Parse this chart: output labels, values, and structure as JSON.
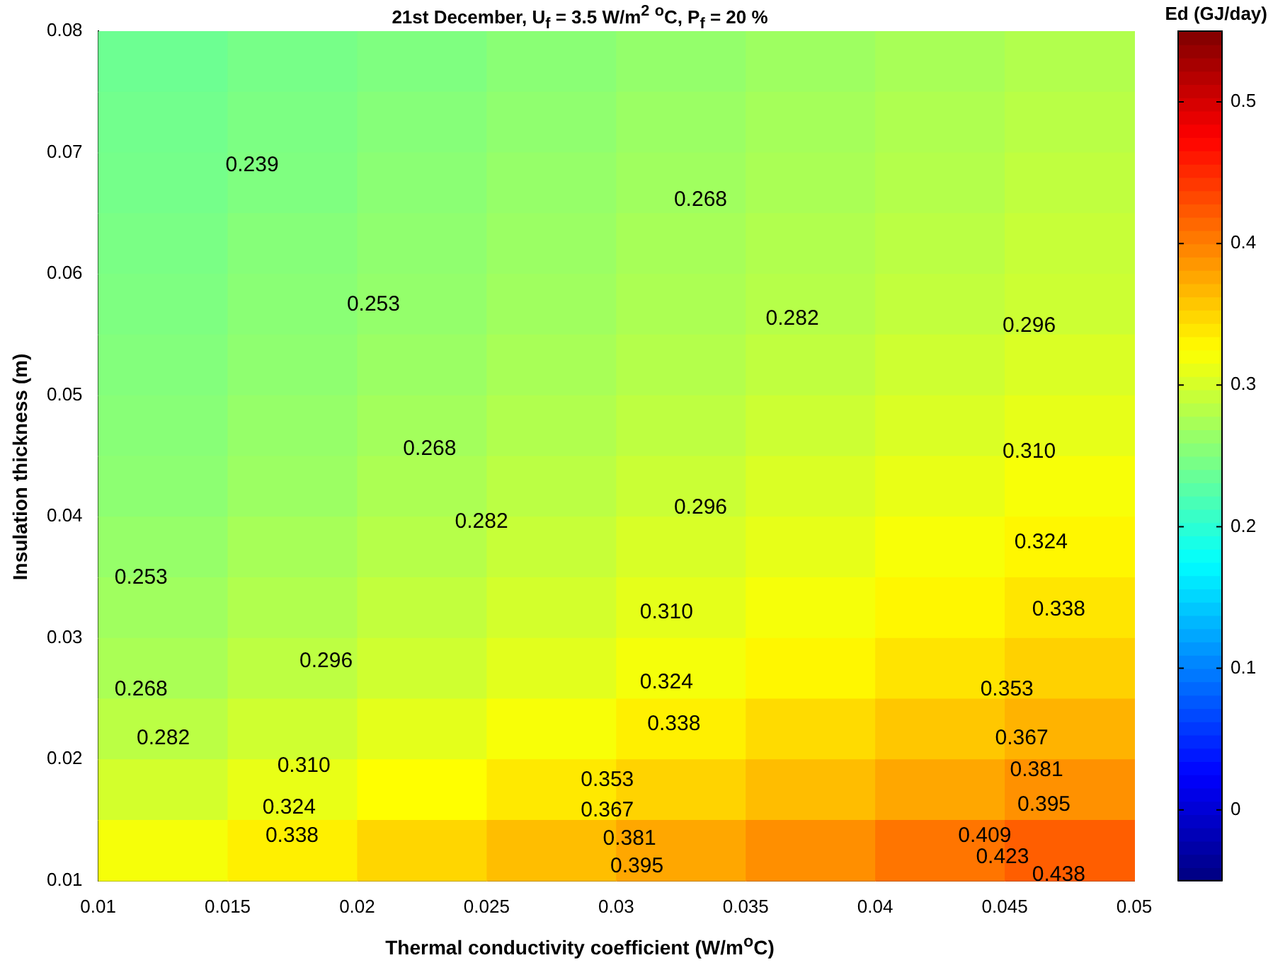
{
  "chart_data": {
    "type": "heatmap",
    "title": "21st December, U$_{f}$ = 3.5 W/m$^{2}$ $^{o}$C, P$_{f}$ = 20 %",
    "xlabel": "Thermal conductivity coefficient (W/m$^{o}$C)",
    "ylabel": "Insulation thickness (m)",
    "clabel": "Ed (GJ/day)",
    "x": [
      0.0125,
      0.0175,
      0.0225,
      0.0275,
      0.0325,
      0.0375,
      0.0425,
      0.0475
    ],
    "y": [
      0.0775,
      0.0725,
      0.0675,
      0.0625,
      0.0575,
      0.0525,
      0.0475,
      0.0425,
      0.0375,
      0.0325,
      0.0275,
      0.0225,
      0.0175,
      0.0125
    ],
    "xlim": [
      0.01,
      0.05
    ],
    "xticks": [
      0.01,
      0.015,
      0.02,
      0.025,
      0.03,
      0.035,
      0.04,
      0.045,
      0.05
    ],
    "ylim": [
      0.01,
      0.08
    ],
    "yticks": [
      0.01,
      0.02,
      0.03,
      0.04,
      0.05,
      0.06,
      0.07,
      0.08
    ],
    "clim": [
      -0.05,
      0.55
    ],
    "cticks": [
      0,
      0.1,
      0.2,
      0.3,
      0.4,
      0.5
    ],
    "cells": [
      [
        0.239,
        0.245,
        0.25,
        0.256,
        0.262,
        0.268,
        0.274,
        0.28
      ],
      [
        0.242,
        0.248,
        0.254,
        0.26,
        0.266,
        0.272,
        0.278,
        0.284
      ],
      [
        0.244,
        0.25,
        0.257,
        0.263,
        0.269,
        0.275,
        0.281,
        0.288
      ],
      [
        0.247,
        0.254,
        0.26,
        0.266,
        0.273,
        0.279,
        0.285,
        0.292
      ],
      [
        0.249,
        0.256,
        0.262,
        0.269,
        0.276,
        0.282,
        0.289,
        0.295
      ],
      [
        0.252,
        0.259,
        0.266,
        0.274,
        0.281,
        0.288,
        0.296,
        0.303
      ],
      [
        0.255,
        0.263,
        0.271,
        0.279,
        0.287,
        0.295,
        0.303,
        0.311
      ],
      [
        0.258,
        0.267,
        0.276,
        0.285,
        0.294,
        0.303,
        0.312,
        0.321
      ],
      [
        0.263,
        0.273,
        0.282,
        0.292,
        0.302,
        0.311,
        0.321,
        0.33
      ],
      [
        0.269,
        0.279,
        0.289,
        0.299,
        0.31,
        0.32,
        0.33,
        0.34
      ],
      [
        0.275,
        0.286,
        0.297,
        0.308,
        0.319,
        0.33,
        0.341,
        0.352
      ],
      [
        0.285,
        0.297,
        0.309,
        0.321,
        0.334,
        0.346,
        0.358,
        0.37
      ],
      [
        0.299,
        0.312,
        0.325,
        0.338,
        0.351,
        0.364,
        0.377,
        0.39
      ],
      [
        0.32,
        0.334,
        0.349,
        0.363,
        0.377,
        0.391,
        0.406,
        0.42
      ]
    ],
    "grid": false,
    "annotations": [
      "0.239",
      "0.253",
      "0.268",
      "0.282",
      "0.296",
      "0.268",
      "0.253",
      "0.282",
      "0.296",
      "0.310",
      "0.268",
      "0.282",
      "0.296",
      "0.310",
      "0.324",
      "0.338",
      "0.324",
      "0.310",
      "0.324",
      "0.338",
      "0.338",
      "0.353",
      "0.353",
      "0.367",
      "0.381",
      "0.395",
      "0.367",
      "0.381",
      "0.395",
      "0.409",
      "0.423",
      "0.438"
    ]
  }
}
